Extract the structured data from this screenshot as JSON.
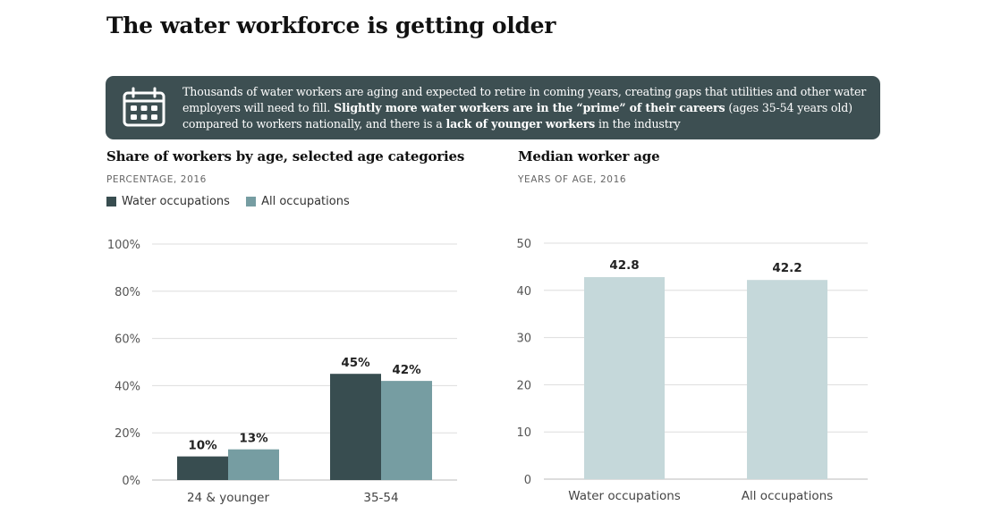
{
  "title": "The water workforce is getting older",
  "callout": {
    "icon": "calendar-icon",
    "text_1": "Thousands of water workers are aging and expected to retire in coming years, creating gaps that utilities and other water employers will need to fill. ",
    "bold_1": "Slightly more water workers are in the “prime” of their careers",
    "text_2": " (ages 35-54 years old) compared to workers nationally, and there is a ",
    "bold_2": "lack of younger workers",
    "text_3": " in the industry"
  },
  "colors": {
    "water": "#384d50",
    "all": "#769da2",
    "median_bar": "#c5d8da",
    "callout_bg": "#3d4f52"
  },
  "chart_data": [
    {
      "type": "bar",
      "title": "Share of workers by age, selected age categories",
      "subtitle": "PERCENTAGE, 2016",
      "categories": [
        "24 & younger",
        "35-54"
      ],
      "series": [
        {
          "name": "Water occupations",
          "values": [
            10,
            45
          ]
        },
        {
          "name": "All occupations",
          "values": [
            13,
            42
          ]
        }
      ],
      "value_suffix": "%",
      "ylim": [
        0,
        100
      ],
      "yticks": [
        0,
        20,
        40,
        60,
        80,
        100
      ],
      "ytick_labels": [
        "0%",
        "20%",
        "40%",
        "60%",
        "80%",
        "100%"
      ],
      "legend": "top-left",
      "grid": true
    },
    {
      "type": "bar",
      "title": "Median worker age",
      "subtitle": "YEARS OF AGE, 2016",
      "categories": [
        "Water occupations",
        "All occupations"
      ],
      "values": [
        42.8,
        42.2
      ],
      "value_labels": [
        "42.8",
        "42.2"
      ],
      "ylim": [
        0,
        50
      ],
      "yticks": [
        0,
        10,
        20,
        30,
        40,
        50
      ],
      "ytick_labels": [
        "0",
        "10",
        "20",
        "30",
        "40",
        "50"
      ],
      "grid": true
    }
  ]
}
